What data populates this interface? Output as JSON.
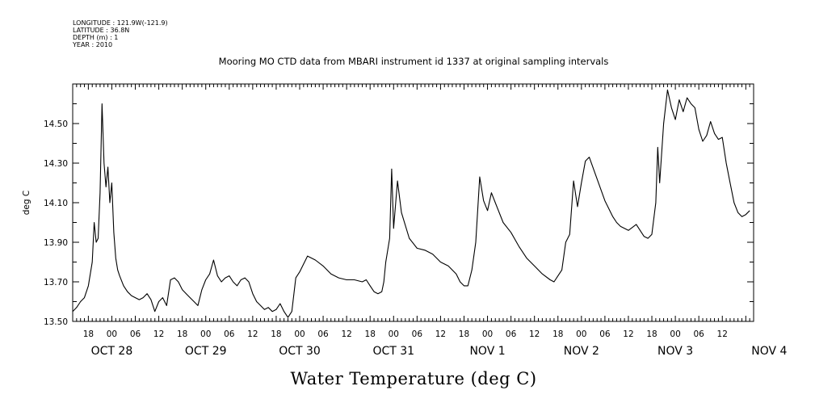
{
  "header": {
    "meta_lines": [
      "LONGITUDE : 121.9W(-121.9)",
      "LATITUDE : 36.8N",
      "DEPTH (m) : 1",
      "YEAR : 2010"
    ]
  },
  "chart_data": {
    "type": "line",
    "title": "Mooring MO CTD data from MBARI instrument id 1337 at original sampling intervals",
    "xlabel": "Water Temperature (deg C)",
    "ylabel": "deg C",
    "ylim": [
      13.5,
      14.7
    ],
    "y_tick_labels": [
      "13.50",
      "13.70",
      "13.90",
      "14.10",
      "14.30",
      "14.50"
    ],
    "x_range": [
      "2010-10-28T14:00",
      "2010-11-04T20:00"
    ],
    "x_hour_tick_labels": [
      "18",
      "00",
      "06",
      "12",
      "18",
      "00",
      "06",
      "12",
      "18",
      "00",
      "06",
      "12",
      "18",
      "00",
      "06",
      "12",
      "18",
      "00",
      "06",
      "12",
      "18",
      "00",
      "06",
      "12",
      "18",
      "00",
      "06",
      "12"
    ],
    "x_date_labels": [
      "OCT 28",
      "OCT 29",
      "OCT 30",
      "OCT 31",
      "NOV  1",
      "NOV  2",
      "NOV  3",
      "NOV  4"
    ],
    "grid": false,
    "series": [
      {
        "x": [
          "2010-10-28T14:00",
          "2010-10-28T15:00",
          "2010-10-28T16:00",
          "2010-10-28T17:00",
          "2010-10-28T18:00",
          "2010-10-28T19:00",
          "2010-10-28T19:30",
          "2010-10-28T20:00",
          "2010-10-28T20:30",
          "2010-10-28T21:00",
          "2010-10-28T21:30",
          "2010-10-28T22:00",
          "2010-10-28T22:30",
          "2010-10-28T23:00",
          "2010-10-28T23:30",
          "2010-10-29T00:00",
          "2010-10-29T00:30",
          "2010-10-29T01:00",
          "2010-10-29T01:30",
          "2010-10-29T02:00",
          "2010-10-29T03:00",
          "2010-10-29T04:00",
          "2010-10-29T05:00",
          "2010-10-29T06:00",
          "2010-10-29T07:00",
          "2010-10-29T08:00",
          "2010-10-29T09:00",
          "2010-10-29T10:00",
          "2010-10-29T11:00",
          "2010-10-29T12:00",
          "2010-10-29T13:00",
          "2010-10-29T14:00",
          "2010-10-29T15:00",
          "2010-10-29T16:00",
          "2010-10-29T17:00",
          "2010-10-29T18:00",
          "2010-10-29T19:00",
          "2010-10-29T20:00",
          "2010-10-29T21:00",
          "2010-10-29T22:00",
          "2010-10-29T23:00",
          "2010-10-30T00:00",
          "2010-10-30T01:00",
          "2010-10-30T02:00",
          "2010-10-30T03:00",
          "2010-10-30T04:00",
          "2010-10-30T05:00",
          "2010-10-30T06:00",
          "2010-10-30T07:00",
          "2010-10-30T08:00",
          "2010-10-30T09:00",
          "2010-10-30T10:00",
          "2010-10-30T11:00",
          "2010-10-30T12:00",
          "2010-10-30T13:00",
          "2010-10-30T14:00",
          "2010-10-30T15:00",
          "2010-10-30T16:00",
          "2010-10-30T17:00",
          "2010-10-30T18:00",
          "2010-10-30T19:00",
          "2010-10-30T20:00",
          "2010-10-30T21:00",
          "2010-10-30T22:00",
          "2010-10-30T23:00",
          "2010-10-31T00:00",
          "2010-10-31T02:00",
          "2010-10-31T04:00",
          "2010-10-31T06:00",
          "2010-10-31T08:00",
          "2010-10-31T10:00",
          "2010-10-31T12:00",
          "2010-10-31T14:00",
          "2010-10-31T16:00",
          "2010-10-31T17:00",
          "2010-10-31T18:00",
          "2010-10-31T19:00",
          "2010-10-31T20:00",
          "2010-10-31T21:00",
          "2010-10-31T21:30",
          "2010-10-31T22:00",
          "2010-10-31T22:30",
          "2010-10-31T23:00",
          "2010-10-31T23:30",
          "2010-11-01T00:00",
          "2010-11-01T01:00",
          "2010-11-01T02:00",
          "2010-11-01T04:00",
          "2010-11-01T06:00",
          "2010-11-01T08:00",
          "2010-11-01T10:00",
          "2010-11-01T12:00",
          "2010-11-01T14:00",
          "2010-11-01T16:00",
          "2010-11-01T17:00",
          "2010-11-01T18:00",
          "2010-11-01T19:00",
          "2010-11-01T20:00",
          "2010-11-01T21:00",
          "2010-11-01T22:00",
          "2010-11-01T23:00",
          "2010-11-02T00:00",
          "2010-11-02T01:00",
          "2010-11-02T02:00",
          "2010-11-02T04:00",
          "2010-11-02T06:00",
          "2010-11-02T08:00",
          "2010-11-02T10:00",
          "2010-11-02T12:00",
          "2010-11-02T14:00",
          "2010-11-02T16:00",
          "2010-11-02T17:00",
          "2010-11-02T18:00",
          "2010-11-02T19:00",
          "2010-11-02T20:00",
          "2010-11-02T21:00",
          "2010-11-02T22:00",
          "2010-11-02T23:00",
          "2010-11-03T00:00",
          "2010-11-03T01:00",
          "2010-11-03T02:00",
          "2010-11-03T04:00",
          "2010-11-03T06:00",
          "2010-11-03T08:00",
          "2010-11-03T09:00",
          "2010-11-03T10:00",
          "2010-11-03T12:00",
          "2010-11-03T14:00",
          "2010-11-03T16:00",
          "2010-11-03T17:00",
          "2010-11-03T18:00",
          "2010-11-03T19:00",
          "2010-11-03T19:30",
          "2010-11-03T20:00",
          "2010-11-03T21:00",
          "2010-11-03T22:00",
          "2010-11-03T23:00",
          "2010-11-04T00:00",
          "2010-11-04T01:00",
          "2010-11-04T02:00",
          "2010-11-04T03:00",
          "2010-11-04T04:00",
          "2010-11-04T05:00",
          "2010-11-04T06:00",
          "2010-11-04T07:00",
          "2010-11-04T08:00",
          "2010-11-04T09:00",
          "2010-11-04T10:00",
          "2010-11-04T11:00",
          "2010-11-04T12:00",
          "2010-11-04T13:00",
          "2010-11-04T14:00",
          "2010-11-04T15:00",
          "2010-11-04T16:00",
          "2010-11-04T17:00",
          "2010-11-04T18:00",
          "2010-11-04T19:00"
        ],
        "values": [
          13.55,
          13.57,
          13.6,
          13.62,
          13.68,
          13.8,
          14.0,
          13.9,
          13.92,
          14.15,
          14.6,
          14.3,
          14.18,
          14.28,
          14.1,
          14.2,
          13.95,
          13.82,
          13.76,
          13.73,
          13.68,
          13.65,
          13.63,
          13.62,
          13.61,
          13.62,
          13.64,
          13.61,
          13.55,
          13.6,
          13.62,
          13.58,
          13.71,
          13.72,
          13.7,
          13.66,
          13.64,
          13.62,
          13.6,
          13.58,
          13.66,
          13.71,
          13.74,
          13.81,
          13.73,
          13.7,
          13.72,
          13.73,
          13.7,
          13.68,
          13.71,
          13.72,
          13.7,
          13.64,
          13.6,
          13.58,
          13.56,
          13.57,
          13.55,
          13.56,
          13.59,
          13.55,
          13.52,
          13.55,
          13.72,
          13.75,
          13.83,
          13.81,
          13.78,
          13.74,
          13.72,
          13.71,
          13.71,
          13.7,
          13.71,
          13.68,
          13.65,
          13.64,
          13.65,
          13.7,
          13.8,
          13.86,
          13.92,
          14.27,
          13.97,
          14.21,
          14.05,
          13.92,
          13.87,
          13.86,
          13.84,
          13.8,
          13.78,
          13.74,
          13.7,
          13.68,
          13.68,
          13.76,
          13.9,
          14.23,
          14.11,
          14.06,
          14.15,
          14.1,
          14.0,
          13.95,
          13.88,
          13.82,
          13.78,
          13.74,
          13.71,
          13.7,
          13.73,
          13.76,
          13.9,
          13.94,
          14.21,
          14.08,
          14.2,
          14.31,
          14.33,
          14.22,
          14.11,
          14.03,
          14.0,
          13.98,
          13.96,
          13.99,
          13.93,
          13.92,
          13.94,
          14.1,
          14.38,
          14.2,
          14.5,
          14.67,
          14.58,
          14.52,
          14.62,
          14.56,
          14.63,
          14.6,
          14.58,
          14.47,
          14.41,
          14.44,
          14.51,
          14.45,
          14.42,
          14.43,
          14.3,
          14.2,
          14.1,
          14.05,
          14.03,
          14.04,
          14.06
        ]
      }
    ]
  }
}
